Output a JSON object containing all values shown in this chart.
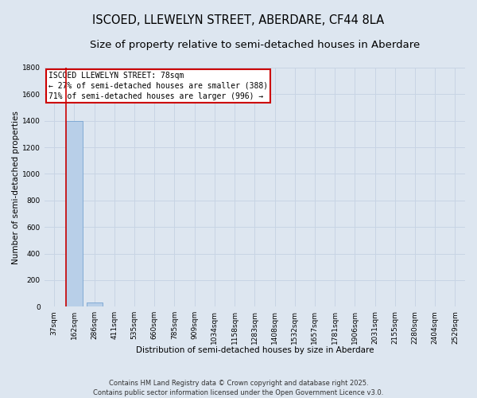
{
  "title": "ISCOED, LLEWELYN STREET, ABERDARE, CF44 8LA",
  "subtitle": "Size of property relative to semi-detached houses in Aberdare",
  "xlabel": "Distribution of semi-detached houses by size in Aberdare",
  "ylabel": "Number of semi-detached properties",
  "categories": [
    "37sqm",
    "162sqm",
    "286sqm",
    "411sqm",
    "535sqm",
    "660sqm",
    "785sqm",
    "909sqm",
    "1034sqm",
    "1158sqm",
    "1283sqm",
    "1408sqm",
    "1532sqm",
    "1657sqm",
    "1781sqm",
    "1906sqm",
    "2031sqm",
    "2155sqm",
    "2280sqm",
    "2404sqm",
    "2529sqm"
  ],
  "values": [
    0,
    1400,
    30,
    0,
    0,
    0,
    0,
    0,
    0,
    0,
    0,
    0,
    0,
    0,
    0,
    0,
    0,
    0,
    0,
    0,
    0
  ],
  "bar_color": "#b8cfe8",
  "bar_edge_color": "#6699cc",
  "grid_color": "#c8d4e4",
  "background_color": "#dde6f0",
  "ylim": [
    0,
    1800
  ],
  "yticks": [
    0,
    200,
    400,
    600,
    800,
    1000,
    1200,
    1400,
    1600,
    1800
  ],
  "annotation_title": "ISCOED LLEWELYN STREET: 78sqm",
  "annotation_line1": "← 27% of semi-detached houses are smaller (388)",
  "annotation_line2": "71% of semi-detached houses are larger (996) →",
  "annotation_box_color": "#ffffff",
  "annotation_box_edge": "#cc0000",
  "footer_line1": "Contains HM Land Registry data © Crown copyright and database right 2025.",
  "footer_line2": "Contains public sector information licensed under the Open Government Licence v3.0.",
  "title_fontsize": 10.5,
  "subtitle_fontsize": 9.5,
  "axis_label_fontsize": 7.5,
  "tick_fontsize": 6.5,
  "annotation_fontsize": 7,
  "footer_fontsize": 6
}
